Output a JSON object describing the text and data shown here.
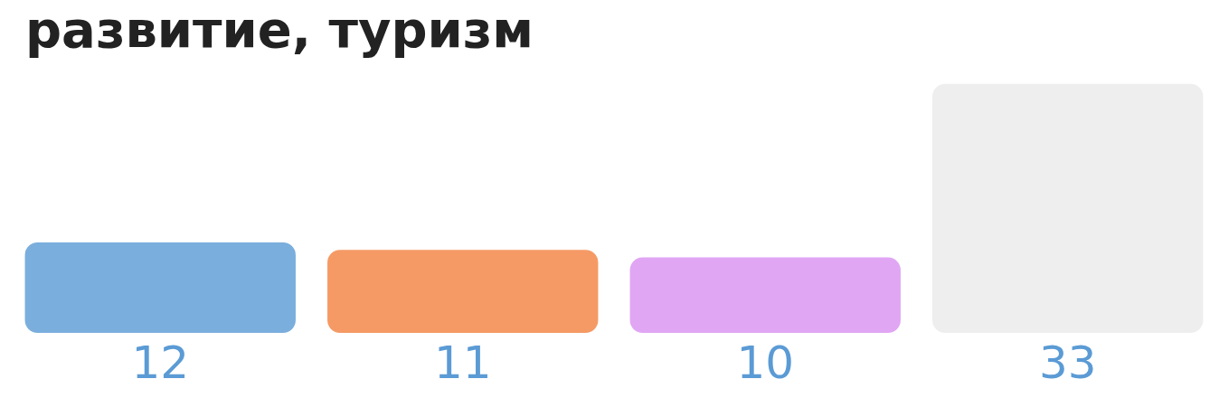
{
  "chart_data": {
    "type": "bar",
    "title": "развитие, туризм",
    "categories": [
      null,
      null,
      null,
      null
    ],
    "values": [
      12,
      11,
      10,
      33
    ],
    "colors": [
      "#7aaedd",
      "#f59a65",
      "#e0a6f3",
      "#eeeeee"
    ],
    "data_labels": true
  }
}
